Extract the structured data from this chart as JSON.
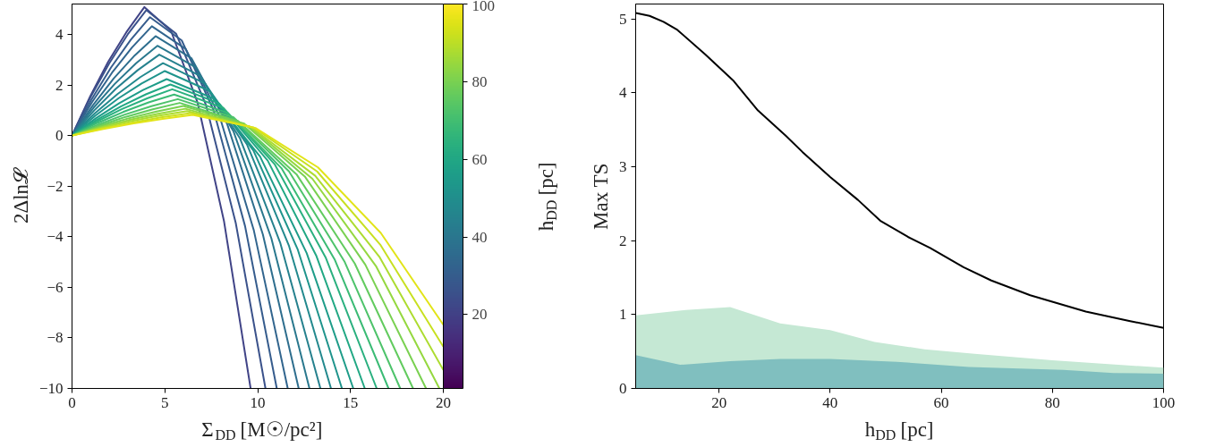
{
  "chart_data": [
    {
      "type": "line",
      "xlabel": "Σ$_{DD}$ [M☉/pc²]",
      "ylabel": "2Δln𝓛",
      "clabel": "h$_{DD}$ [pc]",
      "clim": [
        1,
        100
      ],
      "cticks": [
        20,
        40,
        60,
        80,
        100
      ],
      "xlim": [
        0,
        20
      ],
      "ylim": [
        -10,
        5.2
      ],
      "xticks": [
        0,
        5,
        10,
        15,
        20
      ],
      "yticks": [
        -10,
        -8,
        -6,
        -4,
        -2,
        0,
        2,
        4
      ],
      "grid": false,
      "series": [
        {
          "color": "#414487",
          "x": [
            0,
            0.98,
            1.95,
            2.93,
            3.9,
            5.33,
            6.76,
            8.19,
            9.62
          ],
          "values": [
            0,
            1.55,
            2.92,
            4.09,
            5.08,
            4.14,
            1.31,
            -3.4,
            -10
          ]
        },
        {
          "color": "#3b528b",
          "x": [
            0,
            1,
            2,
            3,
            4,
            5.61,
            7.21,
            8.82,
            10.42
          ],
          "values": [
            0,
            1.52,
            2.85,
            4.0,
            4.96,
            4.02,
            1.22,
            -3.46,
            -10
          ]
        },
        {
          "color": "#365c8d",
          "x": [
            0,
            1.05,
            2.1,
            3.15,
            4.2,
            5.91,
            7.62,
            9.32,
            11.03
          ],
          "values": [
            0,
            1.43,
            2.69,
            3.77,
            4.68,
            3.76,
            1.01,
            -3.58,
            -10
          ]
        },
        {
          "color": "#32658e",
          "x": [
            0,
            1.08,
            2.15,
            3.23,
            4.3,
            6.13,
            7.96,
            9.79,
            11.62
          ],
          "values": [
            0,
            1.32,
            2.48,
            3.48,
            4.32,
            3.42,
            0.74,
            -3.74,
            -10
          ]
        },
        {
          "color": "#2e6e8e",
          "x": [
            0,
            1.13,
            2.25,
            3.38,
            4.5,
            6.43,
            8.36,
            10.28,
            12.21
          ],
          "values": [
            0,
            1.2,
            2.26,
            3.17,
            3.93,
            3.06,
            0.45,
            -3.91,
            -10
          ]
        },
        {
          "color": "#2a788e",
          "x": [
            0,
            1.15,
            2.3,
            3.45,
            4.6,
            6.65,
            8.7,
            10.74,
            12.79
          ],
          "values": [
            0,
            1.09,
            2.04,
            2.86,
            3.55,
            2.7,
            0.16,
            -4.07,
            -10
          ]
        },
        {
          "color": "#26818e",
          "x": [
            0,
            1.18,
            2.35,
            3.53,
            4.7,
            6.87,
            9.04,
            11.21,
            13.38
          ],
          "values": [
            0,
            0.98,
            1.84,
            2.58,
            3.2,
            2.37,
            -0.1,
            -4.23,
            -10
          ]
        },
        {
          "color": "#23898e",
          "x": [
            0,
            1.23,
            2.45,
            3.68,
            4.9,
            7.16,
            9.43,
            11.69,
            13.95
          ],
          "values": [
            0,
            0.88,
            1.64,
            2.31,
            2.86,
            2.06,
            -0.36,
            -4.37,
            -10
          ]
        },
        {
          "color": "#1f948c",
          "x": [
            0,
            1.25,
            2.5,
            3.75,
            5,
            7.39,
            9.77,
            12.16,
            14.54
          ],
          "values": [
            0,
            0.78,
            1.47,
            2.06,
            2.55,
            1.77,
            -0.59,
            -4.51,
            -10
          ]
        },
        {
          "color": "#1e9c89",
          "x": [
            0,
            1.28,
            2.55,
            3.83,
            5.1,
            7.61,
            10.13,
            12.64,
            15.15
          ],
          "values": [
            0,
            0.68,
            1.28,
            1.8,
            2.23,
            1.47,
            -0.83,
            -4.65,
            -10
          ]
        },
        {
          "color": "#22a884",
          "x": [
            0,
            1.33,
            2.65,
            3.98,
            5.3,
            7.92,
            10.54,
            13.15,
            15.77
          ],
          "values": [
            0,
            0.62,
            1.16,
            1.63,
            2.02,
            1.27,
            -0.99,
            -4.74,
            -10
          ]
        },
        {
          "color": "#2ab07f",
          "x": [
            0,
            1.35,
            2.7,
            4.05,
            5.4,
            8.15,
            10.91,
            13.66,
            16.41
          ],
          "values": [
            0,
            0.56,
            1.05,
            1.47,
            1.83,
            1.09,
            -1.13,
            -4.82,
            -10
          ]
        },
        {
          "color": "#3bbb75",
          "x": [
            0,
            1.38,
            2.75,
            4.13,
            5.5,
            8.39,
            11.28,
            14.16,
            17.05
          ],
          "values": [
            0,
            0.5,
            0.93,
            1.31,
            1.62,
            0.89,
            -1.29,
            -4.92,
            -10
          ]
        },
        {
          "color": "#4ec36b",
          "x": [
            0,
            1.43,
            2.85,
            4.28,
            5.7,
            8.7,
            11.69,
            14.69,
            17.68
          ],
          "values": [
            0,
            0.44,
            0.83,
            1.16,
            1.44,
            0.72,
            -1.42,
            -5.0,
            -10
          ]
        },
        {
          "color": "#62cb5f",
          "x": [
            0,
            1.45,
            2.9,
            4.35,
            5.8,
            8.94,
            12.09,
            15.23,
            18.37
          ],
          "values": [
            0,
            0.39,
            0.74,
            1.04,
            1.29,
            0.58,
            -1.53,
            -5.06,
            -10
          ]
        },
        {
          "color": "#7ad151",
          "x": [
            0,
            1.5,
            3,
            4.5,
            6,
            9.27,
            12.54,
            15.8,
            19.07
          ],
          "values": [
            0,
            0.36,
            0.67,
            0.94,
            1.17,
            0.47,
            -1.62,
            -5.11,
            -10
          ]
        },
        {
          "color": "#95d840",
          "x": [
            0,
            1.53,
            3.05,
            4.58,
            6.1,
            9.52,
            12.95,
            16.37,
            19.79
          ],
          "values": [
            0,
            0.32,
            0.61,
            0.85,
            1.06,
            0.37,
            -1.71,
            -5.16,
            -10
          ]
        },
        {
          "color": "#addc30",
          "x": [
            0,
            1.55,
            3.1,
            4.65,
            6.2,
            9.65,
            13.1,
            16.55,
            20
          ],
          "values": [
            0,
            0.3,
            0.56,
            0.78,
            0.97,
            0.33,
            -1.59,
            -4.79,
            -9.27
          ]
        },
        {
          "color": "#c8e020",
          "x": [
            0,
            1.6,
            3.2,
            4.8,
            6.4,
            9.8,
            13.2,
            16.6,
            20
          ],
          "values": [
            0,
            0.27,
            0.51,
            0.72,
            0.89,
            0.31,
            -1.42,
            -4.31,
            -8.35
          ]
        },
        {
          "color": "#e2e418",
          "x": [
            0,
            1.63,
            3.25,
            4.88,
            6.5,
            9.88,
            13.25,
            16.63,
            20
          ],
          "values": [
            0,
            0.25,
            0.47,
            0.66,
            0.82,
            0.3,
            -1.26,
            -3.85,
            -7.48
          ]
        }
      ]
    },
    {
      "type": "line",
      "xlabel": "h$_{DD}$ [pc]",
      "ylabel": "Max TS",
      "xlim": [
        5,
        100
      ],
      "ylim": [
        0,
        5.2
      ],
      "xticks": [
        20,
        40,
        60,
        80,
        100
      ],
      "yticks": [
        0,
        1,
        2,
        3,
        4,
        5
      ],
      "grid": false,
      "series": [
        {
          "type": "area",
          "color": "#c5e8d4",
          "x": [
            5,
            14,
            22,
            31,
            40,
            48,
            57,
            66,
            80,
            100
          ],
          "values": [
            0.99,
            1.06,
            1.1,
            0.88,
            0.79,
            0.63,
            0.53,
            0.47,
            0.38,
            0.28
          ]
        },
        {
          "type": "area",
          "color": "#80bfbf",
          "x": [
            5,
            13,
            22,
            31,
            40,
            52,
            65,
            82,
            91,
            100
          ],
          "values": [
            0.45,
            0.32,
            0.37,
            0.4,
            0.4,
            0.36,
            0.29,
            0.25,
            0.21,
            0.2
          ]
        },
        {
          "type": "line",
          "color": "#000000",
          "x": [
            5,
            7.5,
            10,
            12.5,
            17.5,
            22.5,
            27,
            32,
            35,
            40,
            45,
            49,
            54,
            58,
            64,
            69,
            76,
            86,
            94,
            100
          ],
          "values": [
            5.08,
            5.04,
            4.96,
            4.85,
            4.52,
            4.17,
            3.76,
            3.42,
            3.2,
            2.86,
            2.55,
            2.27,
            2.05,
            1.9,
            1.64,
            1.46,
            1.26,
            1.04,
            0.91,
            0.82
          ]
        }
      ]
    }
  ]
}
